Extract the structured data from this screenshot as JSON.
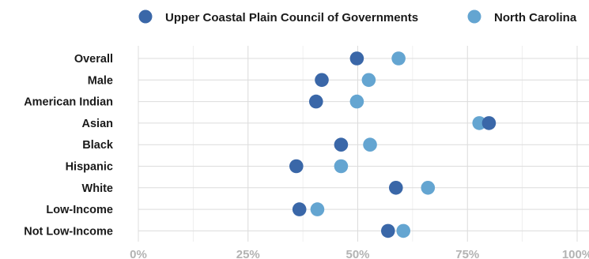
{
  "chart_data": {
    "type": "scatter",
    "title": "",
    "xlabel": "",
    "ylabel": "",
    "xlim": [
      0,
      100
    ],
    "x_ticks": [
      0,
      25,
      50,
      75,
      100
    ],
    "x_tick_labels": [
      "0%",
      "25%",
      "50%",
      "75%",
      "100%"
    ],
    "grid": true,
    "legend_position": "top",
    "categories": [
      "Overall",
      "Male",
      "American Indian",
      "Asian",
      "Black",
      "Hispanic",
      "White",
      "Low-Income",
      "Not Low-Income"
    ],
    "series": [
      {
        "name": "Upper Coastal Plain Council of Governments",
        "color": "#3a67a8",
        "values": [
          49.8,
          41.8,
          40.5,
          79.9,
          46.2,
          36.0,
          58.7,
          36.7,
          56.9
        ]
      },
      {
        "name": "North Carolina",
        "color": "#64a5d1",
        "values": [
          59.3,
          52.5,
          49.8,
          77.7,
          52.8,
          46.2,
          66.0,
          40.8,
          60.4
        ]
      }
    ]
  }
}
